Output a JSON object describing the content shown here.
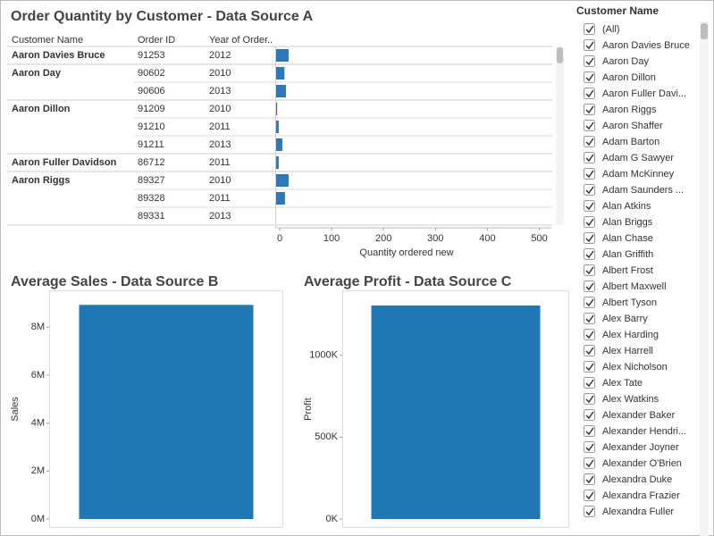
{
  "chart_data": [
    {
      "type": "hbar",
      "title": "Order Quantity by Customer - Data Source A",
      "columns": [
        "Customer Name",
        "Order ID",
        "Year of Order.."
      ],
      "customers": [
        "Aaron Davies Bruce",
        "Aaron Day",
        null,
        "Aaron Dillon",
        null,
        null,
        "Aaron Fuller Davidson",
        "Aaron Riggs",
        null,
        null
      ],
      "order_ids": [
        91253,
        90602,
        90606,
        91209,
        91210,
        91211,
        86712,
        89327,
        89328,
        89331
      ],
      "years": [
        2012,
        2010,
        2013,
        2010,
        2011,
        2013,
        2011,
        2010,
        2011,
        2013
      ],
      "values": [
        24,
        16,
        19,
        2,
        5,
        12,
        5,
        24,
        17,
        null
      ],
      "color": "#2c78b8",
      "xlabel": "Quantity ordered new",
      "xlim": [
        0,
        530
      ],
      "xticks": [
        0,
        100,
        200,
        300,
        400,
        500
      ]
    },
    {
      "type": "bar",
      "title": "Average Sales - Data Source B",
      "ylabel": "Sales",
      "values": [
        8930000
      ],
      "color": "#1f77b4",
      "ylim": [
        0,
        9500000
      ],
      "yticks": [
        {
          "value": 0,
          "label": "0M"
        },
        {
          "value": 2000000,
          "label": "2M"
        },
        {
          "value": 4000000,
          "label": "4M"
        },
        {
          "value": 6000000,
          "label": "6M"
        },
        {
          "value": 8000000,
          "label": "8M"
        }
      ]
    },
    {
      "type": "bar",
      "title": "Average Profit - Data Source C",
      "ylabel": "Profit",
      "values": [
        1304000
      ],
      "color": "#1f77b4",
      "ylim": [
        0,
        1391000
      ],
      "yticks": [
        {
          "value": 0,
          "label": "0K"
        },
        {
          "value": 500000,
          "label": "500K"
        },
        {
          "value": 1000000,
          "label": "1000K"
        }
      ]
    }
  ],
  "filter": {
    "title": "Customer Name",
    "items": [
      "(All)",
      "Aaron Davies Bruce",
      "Aaron Day",
      "Aaron Dillon",
      "Aaron Fuller Davi...",
      "Aaron Riggs",
      "Aaron Shaffer",
      "Adam Barton",
      "Adam G Sawyer",
      "Adam McKinney",
      "Adam Saunders ...",
      "Alan Atkins",
      "Alan Briggs",
      "Alan Chase",
      "Alan Griffith",
      "Albert Frost",
      "Albert Maxwell",
      "Albert Tyson",
      "Alex Barry",
      "Alex Harding",
      "Alex Harrell",
      "Alex Nicholson",
      "Alex Tate",
      "Alex Watkins",
      "Alexander Baker",
      "Alexander Hendri...",
      "Alexander Joyner",
      "Alexander O'Brien",
      "Alexandra Duke",
      "Alexandra Frazier",
      "Alexandra Fuller"
    ]
  }
}
